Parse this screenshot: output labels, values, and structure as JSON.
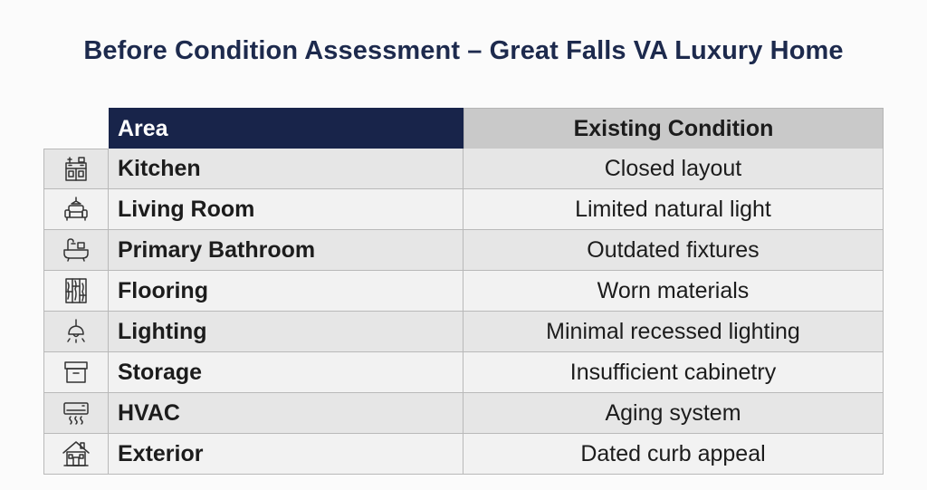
{
  "title": "Before Condition Assessment – Great Falls VA Luxury Home",
  "table": {
    "headers": {
      "area": "Area",
      "condition": "Existing Condition"
    },
    "rows": [
      {
        "icon": "kitchen-icon",
        "area": "Kitchen",
        "condition": "Closed layout"
      },
      {
        "icon": "sofa-icon",
        "area": "Living Room",
        "condition": "Limited natural light"
      },
      {
        "icon": "bathtub-icon",
        "area": "Primary Bathroom",
        "condition": "Outdated fixtures"
      },
      {
        "icon": "wood-floor-icon",
        "area": "Flooring",
        "condition": "Worn materials"
      },
      {
        "icon": "ceiling-lamp-icon",
        "area": "Lighting",
        "condition": "Minimal recessed lighting"
      },
      {
        "icon": "storage-box-icon",
        "area": "Storage",
        "condition": "Insufficient cabinetry"
      },
      {
        "icon": "air-conditioner-icon",
        "area": "HVAC",
        "condition": "Aging system"
      },
      {
        "icon": "house-icon",
        "area": "Exterior",
        "condition": "Dated curb appeal"
      }
    ]
  },
  "colors": {
    "title": "#1d2a4d",
    "header_area_bg": "#18244a",
    "header_condition_bg": "#c9c9c9",
    "row_odd_bg": "#e6e6e6",
    "row_even_bg": "#f2f2f2"
  }
}
